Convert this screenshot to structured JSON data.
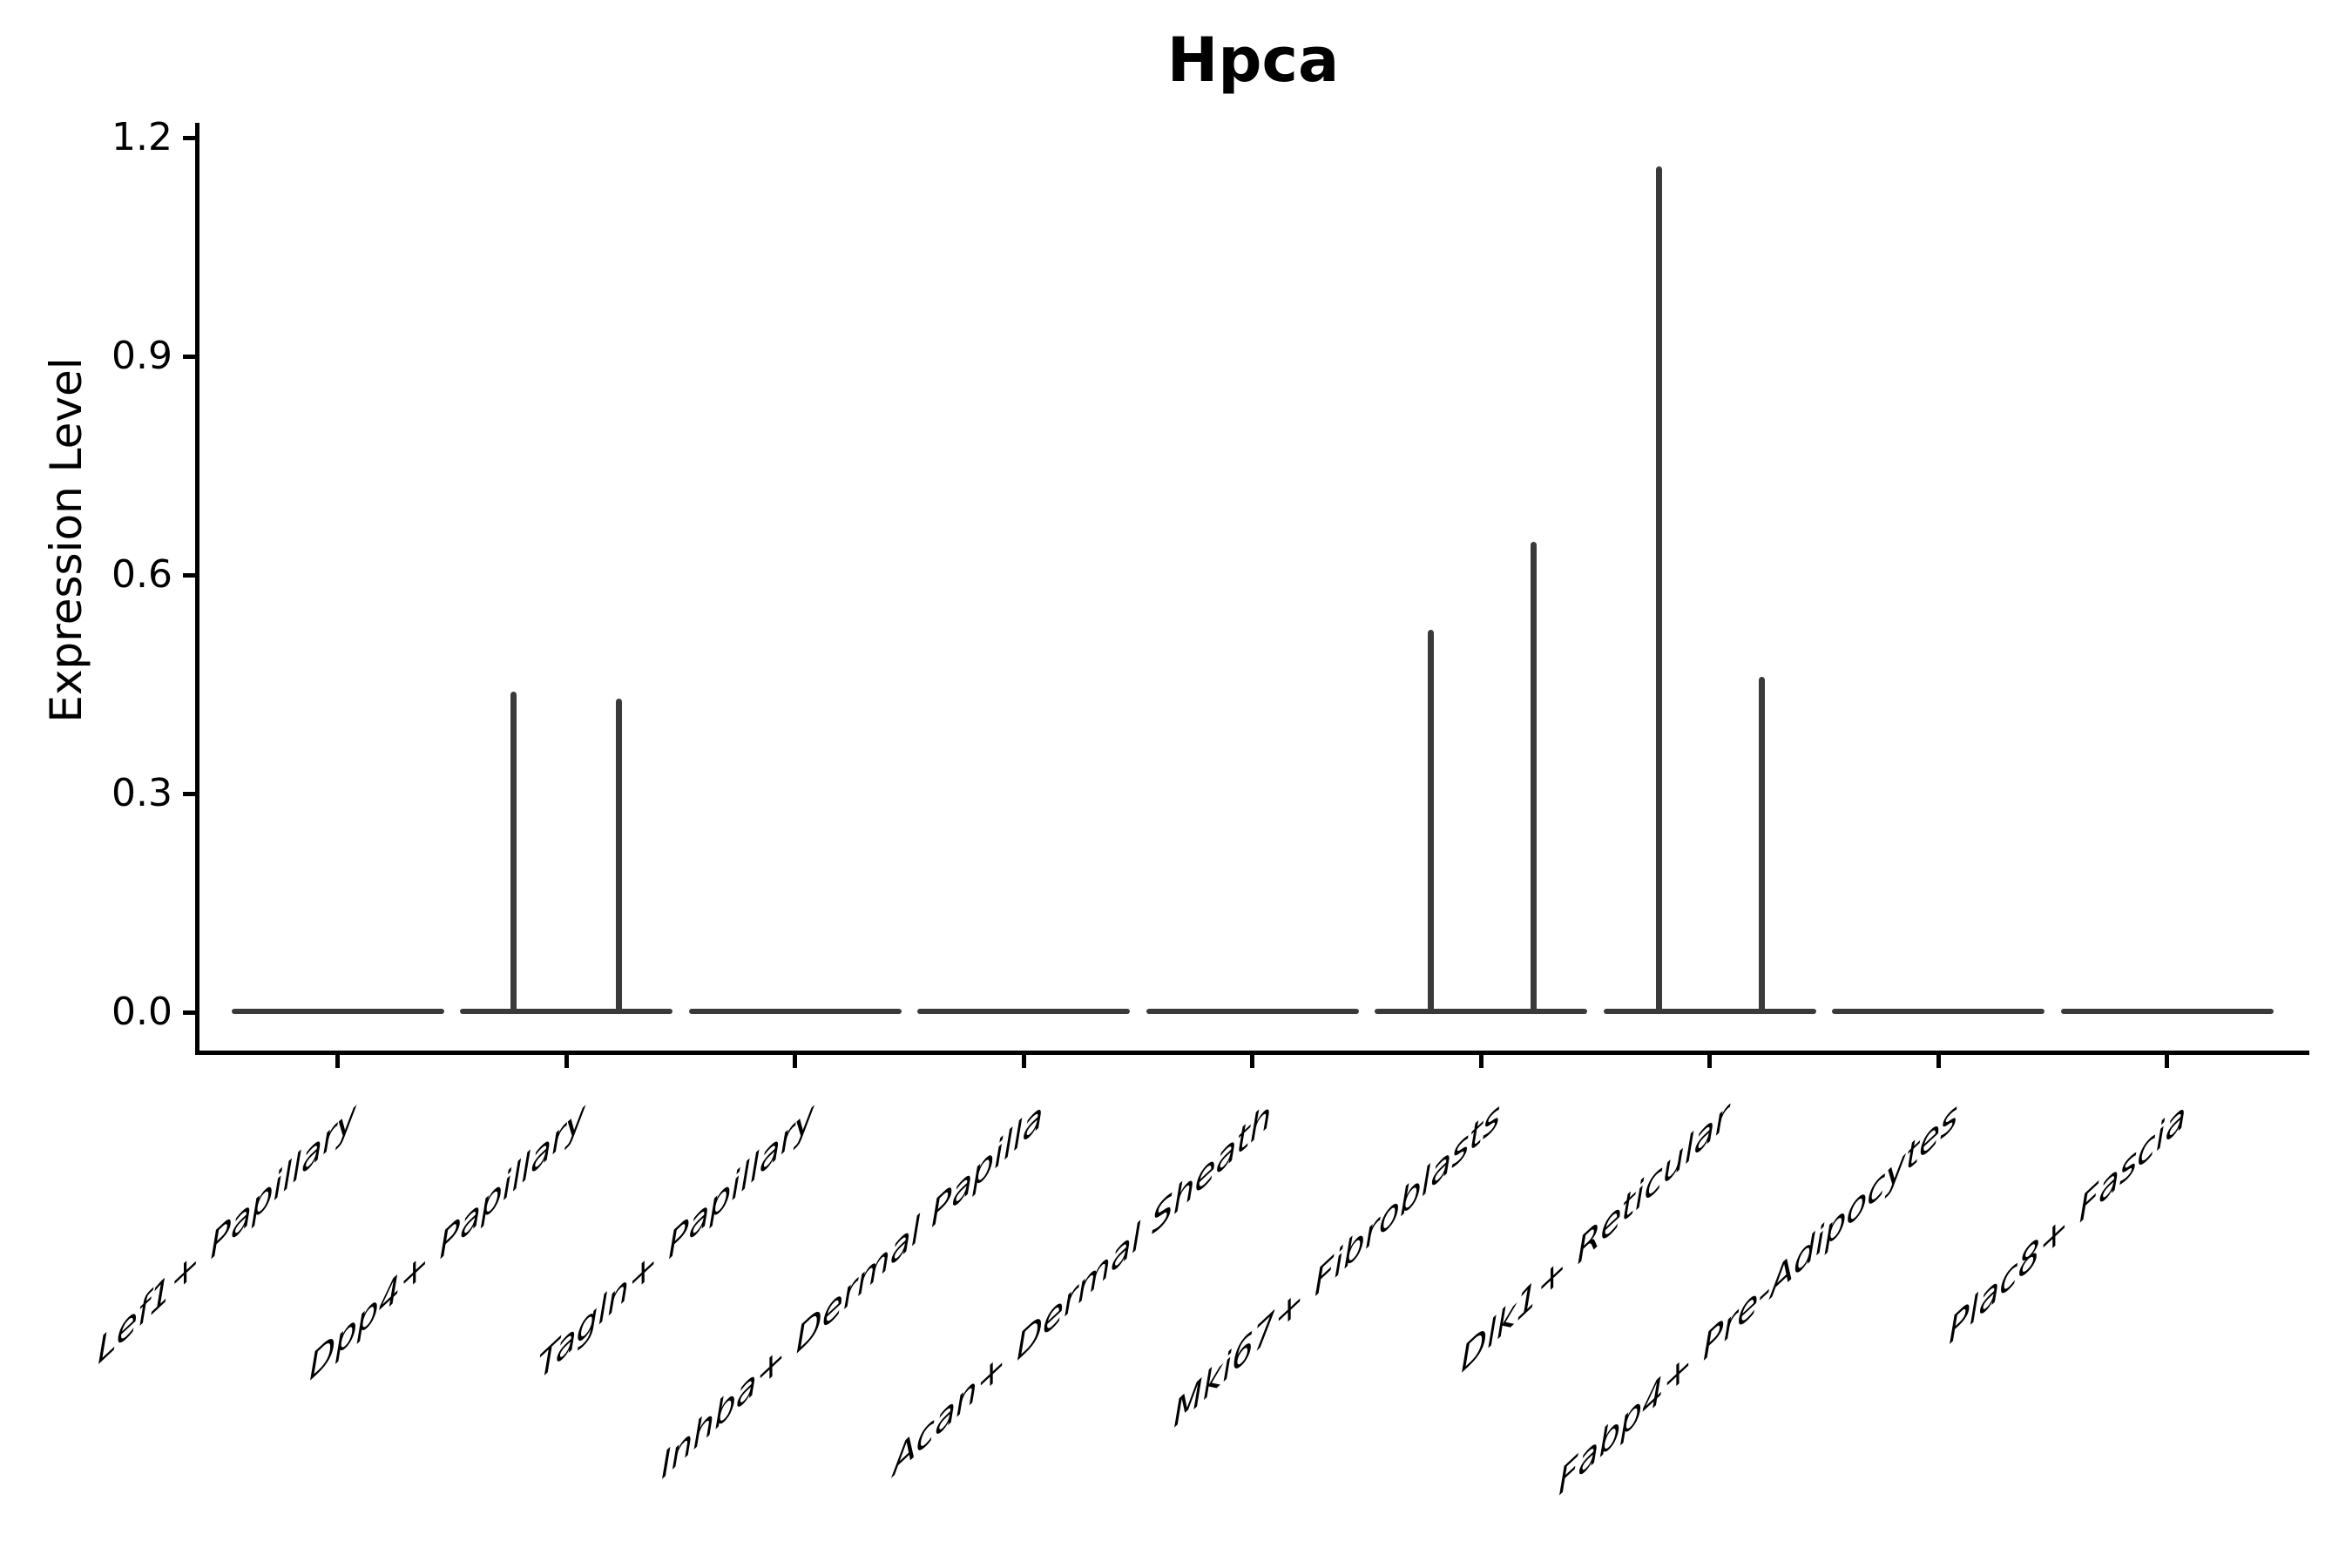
{
  "chart_data": {
    "type": "violin",
    "title": "Hpca",
    "xlabel": "",
    "ylabel": "Expression Level",
    "ylim": [
      0,
      1.2
    ],
    "grid": false,
    "legend": null,
    "yticks": [
      {
        "value": 0.0,
        "label": "0.0"
      },
      {
        "value": 0.3,
        "label": "0.3"
      },
      {
        "value": 0.6,
        "label": "0.6"
      },
      {
        "value": 0.9,
        "label": "0.9"
      },
      {
        "value": 1.2,
        "label": "1.2"
      }
    ],
    "categories": [
      "Lef1+ Papillary",
      "Dpp4+ Papillary",
      "Tagln+ Papillary",
      "Inhba+ Dermal Papilla",
      "Acan+ Dermal Sheath",
      "Mki67+ Fibroblasts",
      "Dlk1+ Reticular",
      "Fabp4+ Pre-Adipocytes",
      "Plac8+ Fascia"
    ],
    "violins": [
      {
        "category": "Lef1+ Papillary",
        "baseline_value": 0.0,
        "spikes": []
      },
      {
        "category": "Dpp4+ Papillary",
        "baseline_value": 0.0,
        "spikes": [
          {
            "offset": -0.23,
            "value": 0.44
          },
          {
            "offset": 0.23,
            "value": 0.43
          }
        ]
      },
      {
        "category": "Tagln+ Papillary",
        "baseline_value": 0.0,
        "spikes": []
      },
      {
        "category": "Inhba+ Dermal Papilla",
        "baseline_value": 0.0,
        "spikes": []
      },
      {
        "category": "Acan+ Dermal Sheath",
        "baseline_value": 0.0,
        "spikes": []
      },
      {
        "category": "Mki67+ Fibroblasts",
        "baseline_value": 0.0,
        "spikes": [
          {
            "offset": -0.22,
            "value": 0.525
          },
          {
            "offset": 0.23,
            "value": 0.645
          }
        ]
      },
      {
        "category": "Dlk1+ Reticular",
        "baseline_value": 0.0,
        "spikes": [
          {
            "offset": -0.22,
            "value": 1.16
          },
          {
            "offset": 0.23,
            "value": 0.46
          }
        ]
      },
      {
        "category": "Fabp4+ Pre-Adipocytes",
        "baseline_value": 0.0,
        "spikes": []
      },
      {
        "category": "Plac8+ Fascia",
        "baseline_value": 0.0,
        "spikes": []
      }
    ],
    "colors": {
      "violin_line": "#3a3a3a",
      "axis": "#000000",
      "text": "#000000",
      "background": "#ffffff"
    }
  }
}
